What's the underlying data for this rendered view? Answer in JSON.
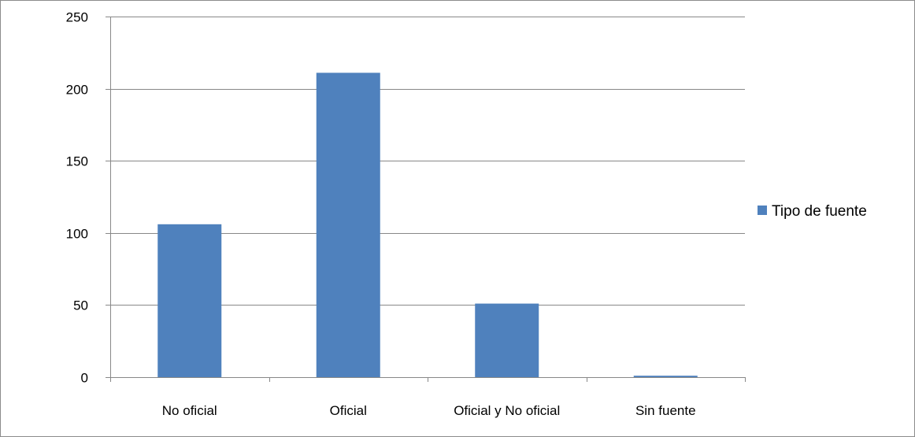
{
  "chart_data": {
    "type": "bar",
    "categories": [
      "No oficial",
      "Oficial",
      "Oficial y No oficial",
      "Sin fuente"
    ],
    "series": [
      {
        "name": "Tipo de fuente",
        "values": [
          106,
          211,
          51,
          1
        ]
      }
    ],
    "ylim": [
      0,
      250
    ],
    "yticks": [
      0,
      50,
      100,
      150,
      200,
      250
    ],
    "grid": true,
    "legend": "right",
    "colors": {
      "bar": "#4f81bd",
      "grid": "#888888",
      "axis": "#888888"
    }
  }
}
